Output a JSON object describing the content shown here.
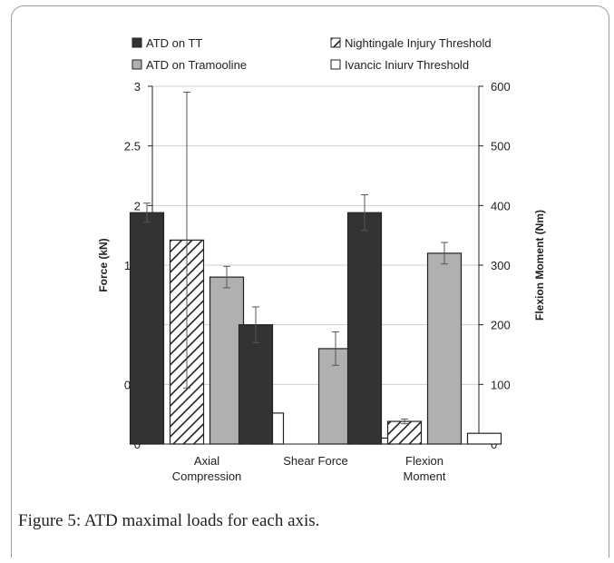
{
  "caption": "Figure 5: ATD maximal loads for each axis.",
  "colors": {
    "atd_tt": "#333333",
    "atd_tramp": "#b0b0b0",
    "nightingale": "hatch",
    "ivancic": "#ffffff",
    "grid": "#cfcfcf"
  },
  "chart_data": {
    "type": "bar",
    "title": "",
    "categories": [
      [
        "Axial",
        "Compression"
      ],
      [
        "Shear Force"
      ],
      [
        "Flexion",
        "Moment"
      ]
    ],
    "ylabel": "Force (kN)",
    "y2label": "Flexion Moment (Nm)",
    "ylim": [
      0,
      3
    ],
    "y2lim": [
      0,
      600
    ],
    "yticks": [
      "0",
      "0.5",
      "1",
      "1.5",
      "2",
      "2.5",
      "3"
    ],
    "y2ticks": [
      "0",
      "100",
      "200",
      "300",
      "400",
      "500",
      "600"
    ],
    "grid": true,
    "legend_position": "top",
    "series": [
      {
        "name": "ATD on TT",
        "key": "atd_tt",
        "values": [
          1.94,
          1.0,
          1.94
        ],
        "errors": [
          0.08,
          0.15,
          0.15
        ]
      },
      {
        "name": "Nightingale Injury Threshold",
        "key": "nightingale",
        "values": [
          1.71,
          null,
          0.19
        ],
        "errors": [
          1.24,
          null,
          0.02
        ]
      },
      {
        "name": "ATD on Tramooline",
        "key": "atd_tramp",
        "values": [
          1.4,
          0.8,
          1.6
        ],
        "errors": [
          0.09,
          0.14,
          0.09
        ]
      },
      {
        "name": "Ivancic Iniurv Threshold",
        "key": "ivancic",
        "values": [
          0.26,
          0.05,
          0.09
        ],
        "errors": [
          0.03,
          0.0,
          0.0
        ]
      }
    ]
  }
}
